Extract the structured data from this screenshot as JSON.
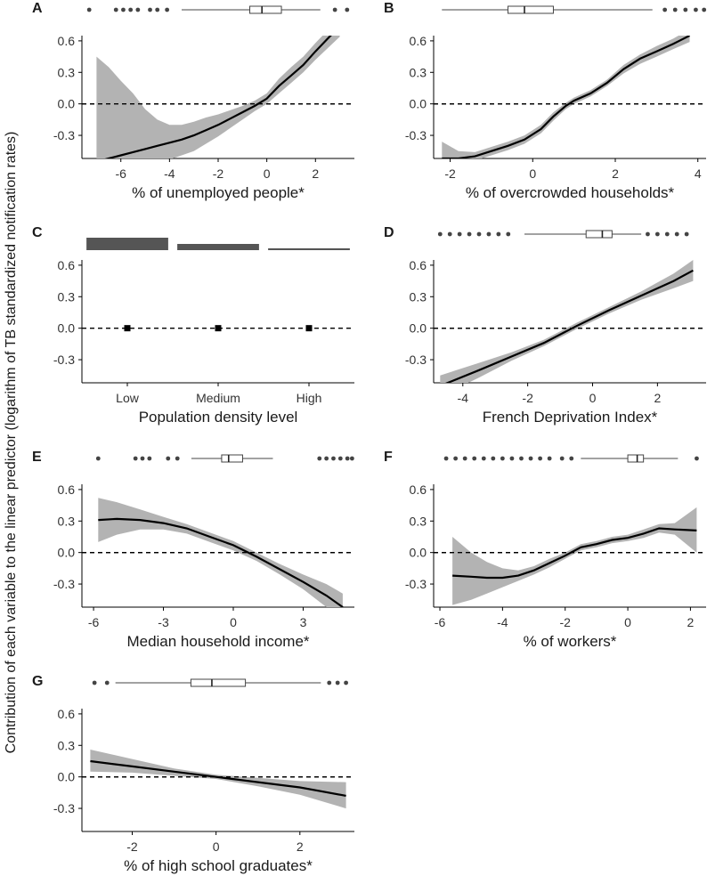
{
  "figure": {
    "ylabel": "Contribution of each variable to the linear predictor (logarithm of TB standardized notification rates)"
  },
  "chart_data": [
    {
      "panel": "A",
      "type": "line",
      "xlabel": "% of unemployed people*",
      "xlim": [
        -7.6,
        3.6
      ],
      "ylim": [
        -0.52,
        0.65
      ],
      "xticks": [
        -6,
        -4,
        -2,
        0,
        2
      ],
      "yticks": [
        -0.3,
        0.0,
        0.3,
        0.6
      ],
      "x": [
        -7.0,
        -6.5,
        -6.0,
        -5.5,
        -5.0,
        -4.5,
        -4.0,
        -3.5,
        -3.0,
        -2.5,
        -2.0,
        -1.5,
        -1.0,
        -0.5,
        0.0,
        0.5,
        1.0,
        1.5,
        2.0,
        2.5,
        3.0
      ],
      "fit": [
        -0.55,
        -0.52,
        -0.49,
        -0.46,
        -0.43,
        -0.4,
        -0.37,
        -0.34,
        -0.3,
        -0.25,
        -0.2,
        -0.14,
        -0.08,
        -0.02,
        0.05,
        0.17,
        0.27,
        0.37,
        0.5,
        0.62,
        0.74
      ],
      "lower": [
        -0.7,
        -0.68,
        -0.65,
        -0.62,
        -0.6,
        -0.57,
        -0.53,
        -0.49,
        -0.45,
        -0.38,
        -0.31,
        -0.23,
        -0.15,
        -0.07,
        0.0,
        0.1,
        0.2,
        0.3,
        0.42,
        0.53,
        0.64
      ],
      "upper": [
        0.45,
        0.35,
        0.22,
        0.1,
        -0.05,
        -0.15,
        -0.2,
        -0.2,
        -0.17,
        -0.13,
        -0.1,
        -0.06,
        -0.02,
        0.03,
        0.1,
        0.24,
        0.35,
        0.45,
        0.58,
        0.7,
        0.82
      ],
      "outliers": [
        -7.3,
        -6.2,
        -5.9,
        -5.6,
        -5.3,
        -4.8,
        -4.5,
        -4.1,
        2.8,
        3.3
      ],
      "box": {
        "whisker_low": -3.5,
        "q1": -0.7,
        "median": -0.2,
        "q3": 0.6,
        "whisker_high": 2.2
      }
    },
    {
      "panel": "B",
      "type": "line",
      "xlabel": "% of overcrowded households*",
      "xlim": [
        -2.4,
        4.2
      ],
      "ylim": [
        -0.52,
        0.65
      ],
      "xticks": [
        -2,
        0,
        2,
        4
      ],
      "yticks": [
        -0.3,
        0.0,
        0.3,
        0.6
      ],
      "x": [
        -2.2,
        -1.8,
        -1.4,
        -1.0,
        -0.6,
        -0.2,
        0.2,
        0.5,
        0.8,
        1.0,
        1.4,
        1.8,
        2.2,
        2.6,
        3.0,
        3.4,
        3.8
      ],
      "fit": [
        -0.52,
        -0.52,
        -0.5,
        -0.45,
        -0.4,
        -0.34,
        -0.24,
        -0.12,
        -0.02,
        0.03,
        0.1,
        0.2,
        0.33,
        0.43,
        0.5,
        0.57,
        0.65
      ],
      "lower": [
        -0.6,
        -0.57,
        -0.54,
        -0.49,
        -0.44,
        -0.38,
        -0.28,
        -0.16,
        -0.05,
        0.0,
        0.07,
        0.17,
        0.29,
        0.38,
        0.45,
        0.52,
        0.59
      ],
      "upper": [
        -0.36,
        -0.45,
        -0.46,
        -0.41,
        -0.36,
        -0.3,
        -0.2,
        -0.08,
        0.01,
        0.06,
        0.13,
        0.23,
        0.37,
        0.47,
        0.55,
        0.62,
        0.71
      ],
      "outliers": [
        3.2,
        3.45,
        3.7,
        3.95,
        4.15
      ],
      "box": {
        "whisker_low": -2.2,
        "q1": -0.6,
        "median": -0.2,
        "q3": 0.5,
        "whisker_high": 2.9
      }
    },
    {
      "panel": "C",
      "type": "categorical",
      "xlabel": "Population density level",
      "ylim": [
        -0.52,
        0.65
      ],
      "yticks": [
        -0.3,
        0.0,
        0.3,
        0.6
      ],
      "categories": [
        "Low",
        "Medium",
        "High"
      ],
      "values": [
        0.0,
        0.0,
        0.0
      ],
      "bar_thickness": [
        1.0,
        0.5,
        0.15
      ]
    },
    {
      "panel": "D",
      "type": "line",
      "xlabel": "French Deprivation Index*",
      "xlim": [
        -4.9,
        3.5
      ],
      "ylim": [
        -0.52,
        0.65
      ],
      "xticks": [
        -4,
        -2,
        0,
        2
      ],
      "yticks": [
        -0.3,
        0.0,
        0.3,
        0.6
      ],
      "x": [
        -4.7,
        -3.5,
        -2.5,
        -1.5,
        -0.5,
        0.5,
        1.5,
        2.5,
        3.1
      ],
      "fit": [
        -0.55,
        -0.4,
        -0.27,
        -0.14,
        0.02,
        0.17,
        0.31,
        0.45,
        0.55
      ],
      "lower": [
        -0.65,
        -0.47,
        -0.31,
        -0.17,
        -0.01,
        0.14,
        0.27,
        0.38,
        0.45
      ],
      "upper": [
        -0.45,
        -0.33,
        -0.23,
        -0.11,
        0.05,
        0.2,
        0.35,
        0.52,
        0.65
      ],
      "outliers": [
        -4.7,
        -4.4,
        -4.1,
        -3.8,
        -3.5,
        -3.2,
        -2.9,
        -2.6,
        1.7,
        2.0,
        2.3,
        2.6,
        2.9
      ],
      "box": {
        "whisker_low": -2.1,
        "q1": -0.2,
        "median": 0.3,
        "q3": 0.6,
        "whisker_high": 1.5
      }
    },
    {
      "panel": "E",
      "type": "line",
      "xlabel": "Median household income*",
      "xlim": [
        -6.5,
        5.2
      ],
      "ylim": [
        -0.52,
        0.65
      ],
      "xticks": [
        -6,
        -3,
        0,
        3
      ],
      "yticks": [
        -0.3,
        0.0,
        0.3,
        0.6
      ],
      "x": [
        -5.8,
        -5.0,
        -4.0,
        -3.0,
        -2.0,
        -1.0,
        0.0,
        1.0,
        2.0,
        3.0,
        4.0,
        4.7
      ],
      "fit": [
        0.31,
        0.32,
        0.31,
        0.28,
        0.23,
        0.15,
        0.07,
        -0.04,
        -0.16,
        -0.28,
        -0.41,
        -0.52
      ],
      "lower": [
        0.1,
        0.17,
        0.22,
        0.22,
        0.18,
        0.1,
        0.02,
        -0.08,
        -0.21,
        -0.35,
        -0.52,
        -0.65
      ],
      "upper": [
        0.52,
        0.48,
        0.41,
        0.34,
        0.27,
        0.19,
        0.11,
        0.0,
        -0.11,
        -0.21,
        -0.3,
        -0.39
      ],
      "outliers": [
        -5.8,
        -4.2,
        -3.9,
        -3.6,
        -2.8,
        -2.4,
        3.7,
        4.0,
        4.3,
        4.6,
        4.9,
        5.1
      ],
      "box": {
        "whisker_low": -1.8,
        "q1": -0.5,
        "median": -0.2,
        "q3": 0.4,
        "whisker_high": 1.7
      }
    },
    {
      "panel": "F",
      "type": "line",
      "xlabel": "% of workers*",
      "xlim": [
        -6.2,
        2.5
      ],
      "ylim": [
        -0.52,
        0.65
      ],
      "xticks": [
        -6,
        -4,
        -2,
        0,
        2
      ],
      "yticks": [
        -0.3,
        0.0,
        0.3,
        0.6
      ],
      "x": [
        -5.6,
        -5.0,
        -4.5,
        -4.0,
        -3.5,
        -3.0,
        -2.5,
        -2.0,
        -1.5,
        -1.0,
        -0.5,
        0.0,
        0.5,
        1.0,
        1.5,
        2.2
      ],
      "fit": [
        -0.22,
        -0.23,
        -0.24,
        -0.24,
        -0.22,
        -0.17,
        -0.1,
        -0.03,
        0.05,
        0.08,
        0.12,
        0.14,
        0.18,
        0.23,
        0.22,
        0.21
      ],
      "lower": [
        -0.5,
        -0.45,
        -0.39,
        -0.33,
        -0.27,
        -0.21,
        -0.14,
        -0.06,
        0.02,
        0.05,
        0.09,
        0.11,
        0.14,
        0.19,
        0.17,
        0.0
      ],
      "upper": [
        0.15,
        0.0,
        -0.09,
        -0.15,
        -0.17,
        -0.13,
        -0.06,
        0.0,
        0.08,
        0.11,
        0.15,
        0.17,
        0.22,
        0.27,
        0.28,
        0.43
      ],
      "outliers": [
        -5.8,
        -5.5,
        -5.2,
        -4.9,
        -4.6,
        -4.3,
        -4.0,
        -3.7,
        -3.4,
        -3.1,
        -2.8,
        -2.5,
        -2.1,
        -1.8,
        2.2
      ],
      "box": {
        "whisker_low": -1.5,
        "q1": 0.0,
        "median": 0.3,
        "q3": 0.5,
        "whisker_high": 1.6
      }
    },
    {
      "panel": "G",
      "type": "line",
      "xlabel": "% of high school graduates*",
      "xlim": [
        -3.2,
        3.3
      ],
      "ylim": [
        -0.52,
        0.65
      ],
      "xticks": [
        -2,
        0,
        2
      ],
      "yticks": [
        -0.3,
        0.0,
        0.3,
        0.6
      ],
      "x": [
        -3.0,
        -2.0,
        -1.0,
        0.0,
        1.0,
        2.0,
        3.1
      ],
      "fit": [
        0.15,
        0.1,
        0.05,
        0.0,
        -0.05,
        -0.1,
        -0.18
      ],
      "lower": [
        0.05,
        0.04,
        0.01,
        -0.02,
        -0.09,
        -0.17,
        -0.3
      ],
      "upper": [
        0.26,
        0.17,
        0.08,
        0.02,
        -0.01,
        -0.04,
        -0.05
      ],
      "outliers": [
        -2.9,
        -2.6,
        2.7,
        2.9,
        3.1
      ],
      "box": {
        "whisker_low": -2.4,
        "q1": -0.6,
        "median": -0.1,
        "q3": 0.7,
        "whisker_high": 2.5
      }
    }
  ]
}
